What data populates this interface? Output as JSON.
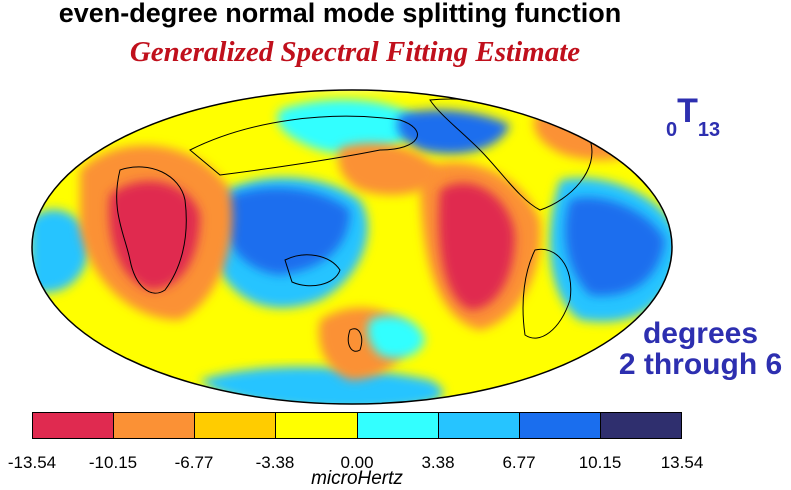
{
  "title": "even-degree normal mode splitting function",
  "subtitle": "Generalized Spectral Fitting Estimate",
  "mode_label": {
    "prefix": "0",
    "letter": "T",
    "suffix": "13"
  },
  "degrees_label": {
    "line1": "degrees",
    "line2": "2 through 6"
  },
  "colorbar": {
    "unit": "microHertz",
    "ticks": [
      "-13.54",
      "-10.15",
      "-6.77",
      "-3.38",
      "0.00",
      "3.38",
      "6.77",
      "10.15",
      "13.54"
    ],
    "colors": [
      "#e02a50",
      "#fb9135",
      "#ffcc00",
      "#ffff00",
      "#33ffff",
      "#26c4ff",
      "#1a6eee",
      "#2f2f6e"
    ]
  },
  "map": {
    "projection": "Mollweide",
    "palette": {
      "red": "#e02a50",
      "orange": "#fb9135",
      "gold": "#ffcc00",
      "yellow": "#ffff00",
      "cyan": "#33ffff",
      "light_blue": "#26c4ff",
      "blue": "#1a6eee",
      "outline": "#000000"
    }
  }
}
